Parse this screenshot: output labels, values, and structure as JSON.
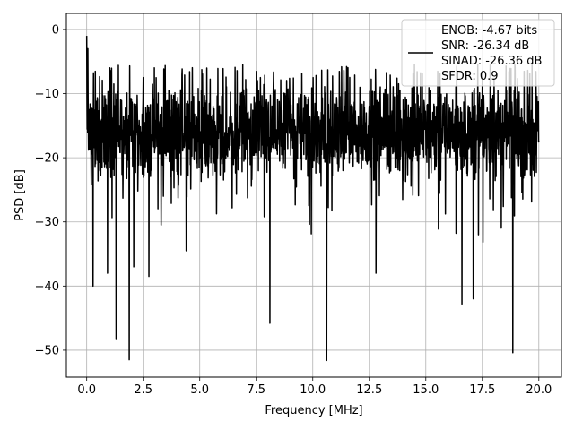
{
  "chart_data": {
    "type": "line",
    "title": "",
    "xlabel": "Frequency [MHz]",
    "ylabel": "PSD [dB]",
    "xlim": [
      -0.9,
      21.0
    ],
    "ylim": [
      -54.2,
      2.5
    ],
    "xticks": [
      0.0,
      2.5,
      5.0,
      7.5,
      10.0,
      12.5,
      15.0,
      17.5,
      20.0
    ],
    "xtick_labels": [
      "0.0",
      "2.5",
      "5.0",
      "7.5",
      "10.0",
      "12.5",
      "15.0",
      "17.5",
      "20.0"
    ],
    "yticks": [
      0,
      -10,
      -20,
      -30,
      -40,
      -50
    ],
    "ytick_labels": [
      "0",
      "−10",
      "−20",
      "−30",
      "−40",
      "−50"
    ],
    "grid": true,
    "legend_position": "top-right",
    "series": [
      {
        "name": "",
        "color": "#000000",
        "legend_lines": [
          "ENOB: -4.67 bits",
          "SNR: -26.34 dB",
          "SINAD: -26.36 dB",
          "SFDR: 0.9"
        ],
        "x_range": [
          0.0,
          20.0
        ],
        "points": 2000,
        "typical_range": [
          -24,
          -8
        ],
        "start_values": [
          [
            0.0,
            -1.0
          ],
          [
            0.05,
            -3.0
          ],
          [
            0.1,
            -14.0
          ]
        ],
        "notable_points": [
          [
            0.28,
            -40.0
          ],
          [
            0.92,
            -38.0
          ],
          [
            1.3,
            -48.2
          ],
          [
            1.88,
            -51.5
          ],
          [
            2.08,
            -37.0
          ],
          [
            2.75,
            -38.5
          ],
          [
            4.4,
            -34.5
          ],
          [
            8.1,
            -45.8
          ],
          [
            10.62,
            -51.6
          ],
          [
            12.8,
            -38.0
          ],
          [
            16.6,
            -42.8
          ],
          [
            17.1,
            -42.0
          ],
          [
            18.85,
            -50.4
          ],
          [
            1.2,
            -8.5
          ],
          [
            2.5,
            -7.5
          ],
          [
            6.9,
            -5.5
          ],
          [
            11.5,
            -5.8
          ],
          [
            14.5,
            -5.5
          ],
          [
            17.3,
            -5.5
          ],
          [
            19.7,
            -5.5
          ]
        ]
      }
    ]
  }
}
